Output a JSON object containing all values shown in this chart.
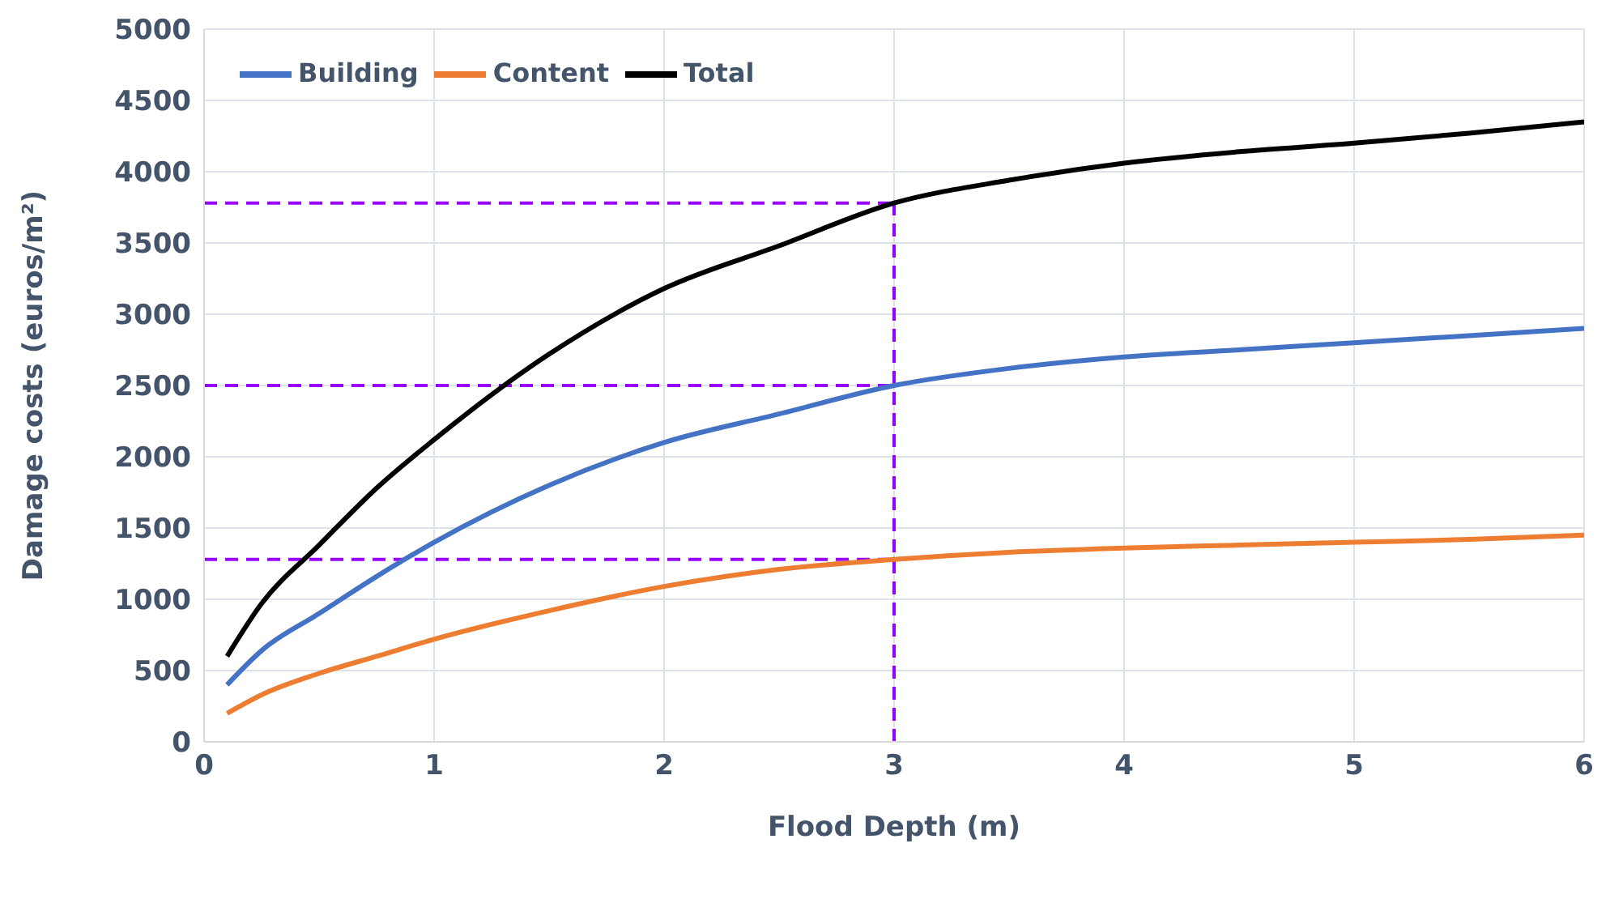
{
  "chart_data": {
    "type": "line",
    "xlabel": "Flood Depth (m)",
    "ylabel": "Damage costs  (euros/m²)",
    "x": [
      0.1,
      0.25,
      0.5,
      0.75,
      1,
      1.5,
      2,
      2.5,
      3,
      3.5,
      4,
      4.5,
      5,
      5.5,
      6
    ],
    "series": [
      {
        "name": "Building",
        "color": "#4472c4",
        "values": [
          400,
          640,
          900,
          1160,
          1400,
          1800,
          2100,
          2300,
          2500,
          2620,
          2700,
          2750,
          2800,
          2850,
          2900
        ]
      },
      {
        "name": "Content",
        "color": "#ed7d31",
        "values": [
          200,
          330,
          480,
          600,
          720,
          920,
          1090,
          1210,
          1280,
          1330,
          1360,
          1380,
          1400,
          1420,
          1450
        ]
      },
      {
        "name": "Total",
        "color": "#000000",
        "values": [
          600,
          970,
          1380,
          1780,
          2120,
          2720,
          3180,
          3480,
          3780,
          3940,
          4060,
          4140,
          4200,
          4270,
          4350
        ]
      }
    ],
    "xlim": [
      0,
      6
    ],
    "xticks": [
      0,
      1,
      2,
      3,
      4,
      5,
      6
    ],
    "ylim": [
      0,
      5000
    ],
    "yticks": [
      0,
      500,
      1000,
      1500,
      2000,
      2500,
      3000,
      3500,
      4000,
      4500,
      5000
    ],
    "ref_lines": [
      {
        "axis": "y",
        "value": 3780,
        "color": "#9900ff",
        "line_style": "dashed"
      },
      {
        "axis": "y",
        "value": 2500,
        "color": "#9900ff",
        "line_style": "dashed"
      },
      {
        "axis": "y",
        "value": 1280,
        "color": "#9900ff",
        "line_style": "dashed"
      },
      {
        "axis": "x",
        "value": 3,
        "color": "#9900ff",
        "line_style": "dashed"
      }
    ],
    "grid": true,
    "legend": "top left",
    "marker": "none",
    "line_style": "solid"
  }
}
